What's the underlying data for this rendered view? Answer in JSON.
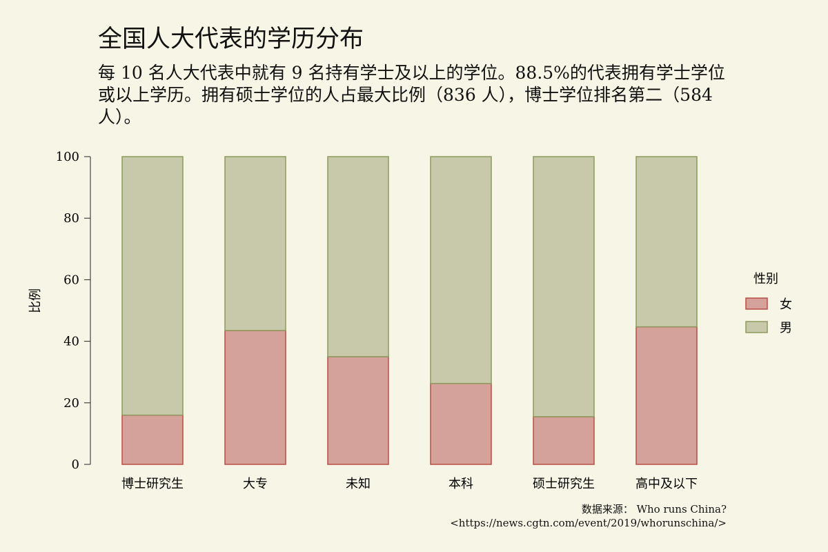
{
  "title": "全国人大代表的学历分布",
  "subtitle": "每 10 名人大代表中就有 9 名持有学士及以上的学位。88.5%的代表拥有学士学位或以上学历。拥有硕士学位的人占最大比例（836 人），博士学位排名第二（584 人）。",
  "caption": {
    "line1": "数据来源：  Who runs China?",
    "line2": "<https://news.cgtn.com/event/2019/whorunschina/>"
  },
  "colors": {
    "background": "#f7f6e6",
    "female_fill": "#d4a19b",
    "female_stroke": "#b84d45",
    "male_fill": "#c7c9aa",
    "male_stroke": "#8c9a5b"
  },
  "chart_data": {
    "type": "bar",
    "stacked": true,
    "title": "全国人大代表的学历分布",
    "subtitle": "每 10 名人大代表中就有 9 名持有学士及以上的学位。88.5%的代表拥有学士学位或以上学历。拥有硕士学位的人占最大比例（836 人），博士学位排名第二（584 人）。",
    "xlabel": "",
    "ylabel": "比例",
    "ylim": [
      0,
      100
    ],
    "yticks": [
      0,
      20,
      40,
      60,
      80,
      100
    ],
    "categories": [
      "博士研究生",
      "大专",
      "未知",
      "本科",
      "硕士研究生",
      "高中及以下"
    ],
    "legend_title": "性别",
    "legend_position": "right",
    "grid": false,
    "series": [
      {
        "name": "女",
        "values": [
          16,
          43.5,
          35,
          26.3,
          15.5,
          44.7
        ]
      },
      {
        "name": "男",
        "values": [
          84,
          56.5,
          65,
          73.7,
          84.5,
          55.3
        ]
      }
    ]
  }
}
